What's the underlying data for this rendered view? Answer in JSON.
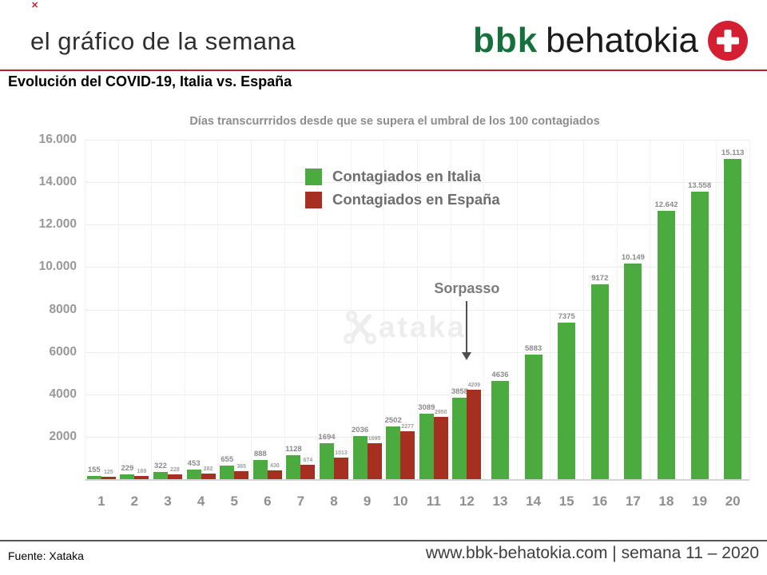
{
  "decor": {
    "top_mark": "✕"
  },
  "header": {
    "title": "el gráfico de la semana",
    "logo_bbk": "bbk",
    "logo_behatokia": "behatokia"
  },
  "subtitle": "Evolución del COVID-19, Italia vs. España",
  "chart_data": {
    "type": "bar",
    "title": "Días transcurrridos desde que se supera el umbral de los 100 contagiados",
    "categories": [
      "1",
      "2",
      "3",
      "4",
      "5",
      "6",
      "7",
      "8",
      "9",
      "10",
      "11",
      "12",
      "13",
      "14",
      "15",
      "16",
      "17",
      "18",
      "19",
      "20"
    ],
    "series": [
      {
        "name": "Contagiados en Italia",
        "color": "#4cab3e",
        "values": [
          155,
          229,
          322,
          453,
          655,
          888,
          1128,
          1694,
          2036,
          2502,
          3089,
          3858,
          4636,
          5883,
          7375,
          9172,
          10149,
          12642,
          13558,
          15113
        ],
        "labels": [
          "155",
          "229",
          "322",
          "453",
          "655",
          "888",
          "1128",
          "1694",
          "2036",
          "2502",
          "3089",
          "3858",
          "4636",
          "5883",
          "7375",
          "9172",
          "10.149",
          "12.642",
          "13.558",
          "15.113"
        ]
      },
      {
        "name": "Contagiados en España",
        "color": "#a52f21",
        "values": [
          125,
          169,
          228,
          282,
          365,
          430,
          674,
          1013,
          1695,
          2277,
          2950,
          4209,
          null,
          null,
          null,
          null,
          null,
          null,
          null,
          null
        ],
        "labels": [
          "125",
          "169",
          "228",
          "282",
          "365",
          "430",
          "674",
          "1013",
          "1695",
          "2277",
          "2950",
          "4209"
        ]
      }
    ],
    "xlabel": "",
    "ylabel": "",
    "ylim": [
      0,
      16000
    ],
    "yticks": [
      {
        "value": 2000,
        "label": "2000"
      },
      {
        "value": 4000,
        "label": "4000"
      },
      {
        "value": 6000,
        "label": "6000"
      },
      {
        "value": 8000,
        "label": "8000"
      },
      {
        "value": 10000,
        "label": "10.000"
      },
      {
        "value": 12000,
        "label": "12.000"
      },
      {
        "value": 14000,
        "label": "14.000"
      },
      {
        "value": 16000,
        "label": "16.000"
      }
    ],
    "grid": true,
    "legend_position": "top-center",
    "annotation": {
      "text": "Sorpasso",
      "category": "12"
    },
    "watermark_text": "ataka"
  },
  "footer": {
    "source": "Fuente: Xataka",
    "website": "www.bbk-behatokia.com | semana 11 – 2020"
  }
}
